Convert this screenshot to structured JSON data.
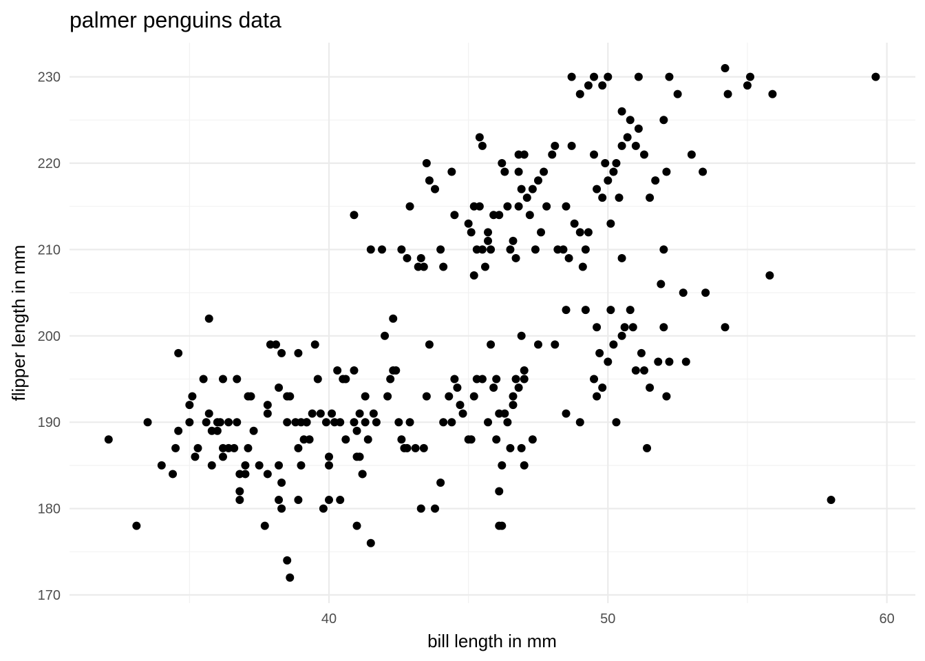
{
  "chart_data": {
    "type": "scatter",
    "title": "palmer penguins data",
    "xlabel": "bill length in mm",
    "ylabel": "flipper length in mm",
    "xlim": [
      31.1,
      61.1
    ],
    "ylim": [
      169,
      233
    ],
    "x_ticks": [
      40,
      50,
      60
    ],
    "y_ticks": [
      170,
      180,
      190,
      200,
      210,
      220,
      230
    ],
    "x_tick_labels": [
      "40",
      "50",
      "60"
    ],
    "y_tick_labels": [
      "170",
      "180",
      "190",
      "200",
      "210",
      "220",
      "230"
    ],
    "grid": true,
    "point_color": "#000000",
    "points": [
      [
        32.1,
        188
      ],
      [
        33.1,
        178
      ],
      [
        33.5,
        190
      ],
      [
        34.0,
        185
      ],
      [
        34.4,
        184
      ],
      [
        34.5,
        187
      ],
      [
        34.6,
        189
      ],
      [
        34.6,
        198
      ],
      [
        35.0,
        190
      ],
      [
        35.0,
        192
      ],
      [
        35.1,
        193
      ],
      [
        35.2,
        186
      ],
      [
        35.3,
        187
      ],
      [
        35.5,
        195
      ],
      [
        35.6,
        190
      ],
      [
        35.7,
        191
      ],
      [
        35.7,
        202
      ],
      [
        35.8,
        185
      ],
      [
        35.8,
        189
      ],
      [
        36.0,
        189
      ],
      [
        36.0,
        190
      ],
      [
        36.1,
        190
      ],
      [
        36.2,
        195
      ],
      [
        36.2,
        187
      ],
      [
        36.2,
        186
      ],
      [
        36.4,
        190
      ],
      [
        36.4,
        187
      ],
      [
        36.6,
        187
      ],
      [
        36.7,
        195
      ],
      [
        36.7,
        190
      ],
      [
        36.8,
        184
      ],
      [
        36.8,
        182
      ],
      [
        36.8,
        181
      ],
      [
        37.0,
        185
      ],
      [
        37.0,
        184
      ],
      [
        37.1,
        187
      ],
      [
        37.1,
        193
      ],
      [
        37.2,
        193
      ],
      [
        37.3,
        189
      ],
      [
        37.5,
        185
      ],
      [
        37.7,
        178
      ],
      [
        37.8,
        184
      ],
      [
        37.8,
        191
      ],
      [
        37.8,
        192
      ],
      [
        37.9,
        199
      ],
      [
        38.1,
        199
      ],
      [
        38.2,
        194
      ],
      [
        38.2,
        185
      ],
      [
        38.2,
        181
      ],
      [
        38.3,
        183
      ],
      [
        38.3,
        180
      ],
      [
        38.3,
        198
      ],
      [
        38.5,
        193
      ],
      [
        38.5,
        190
      ],
      [
        38.5,
        174
      ],
      [
        38.6,
        193
      ],
      [
        38.6,
        172
      ],
      [
        38.8,
        190
      ],
      [
        38.9,
        198
      ],
      [
        38.9,
        187
      ],
      [
        38.9,
        181
      ],
      [
        39.0,
        190
      ],
      [
        39.0,
        185
      ],
      [
        39.1,
        188
      ],
      [
        39.2,
        190
      ],
      [
        39.2,
        190
      ],
      [
        39.3,
        188
      ],
      [
        39.4,
        191
      ],
      [
        39.5,
        199
      ],
      [
        39.6,
        195
      ],
      [
        39.7,
        191
      ],
      [
        39.8,
        180
      ],
      [
        39.9,
        190
      ],
      [
        40.0,
        181
      ],
      [
        40.0,
        186
      ],
      [
        40.0,
        185
      ],
      [
        40.1,
        191
      ],
      [
        40.2,
        190
      ],
      [
        40.3,
        196
      ],
      [
        40.4,
        181
      ],
      [
        40.4,
        190
      ],
      [
        40.5,
        195
      ],
      [
        40.6,
        188
      ],
      [
        40.6,
        195
      ],
      [
        40.9,
        196
      ],
      [
        40.9,
        190
      ],
      [
        41.0,
        178
      ],
      [
        41.0,
        186
      ],
      [
        41.0,
        189
      ],
      [
        41.1,
        191
      ],
      [
        41.1,
        186
      ],
      [
        41.2,
        184
      ],
      [
        41.2,
        184
      ],
      [
        41.3,
        193
      ],
      [
        41.3,
        190
      ],
      [
        41.4,
        188
      ],
      [
        41.5,
        176
      ],
      [
        41.6,
        191
      ],
      [
        41.7,
        190
      ],
      [
        42.0,
        200
      ],
      [
        42.1,
        193
      ],
      [
        42.2,
        195
      ],
      [
        42.3,
        196
      ],
      [
        42.4,
        196
      ],
      [
        42.5,
        190
      ],
      [
        42.6,
        188
      ],
      [
        42.7,
        187
      ],
      [
        42.8,
        187
      ],
      [
        42.9,
        190
      ],
      [
        43.1,
        187
      ],
      [
        43.3,
        180
      ],
      [
        43.4,
        187
      ],
      [
        43.5,
        193
      ],
      [
        43.6,
        199
      ],
      [
        43.8,
        180
      ],
      [
        44.0,
        183
      ],
      [
        44.1,
        190
      ],
      [
        44.3,
        193
      ],
      [
        44.4,
        190
      ],
      [
        44.5,
        195
      ],
      [
        44.6,
        194
      ],
      [
        44.7,
        192
      ],
      [
        44.8,
        191
      ],
      [
        45.0,
        188
      ],
      [
        45.1,
        188
      ],
      [
        45.2,
        193
      ],
      [
        45.3,
        195
      ],
      [
        45.5,
        195
      ],
      [
        45.7,
        190
      ],
      [
        45.8,
        199
      ],
      [
        45.9,
        194
      ],
      [
        46.0,
        188
      ],
      [
        46.1,
        182
      ],
      [
        46.1,
        178
      ],
      [
        46.2,
        185
      ],
      [
        46.3,
        191
      ],
      [
        46.5,
        187
      ],
      [
        46.6,
        193
      ],
      [
        46.7,
        195
      ],
      [
        46.9,
        200
      ],
      [
        47.0,
        196
      ],
      [
        47.0,
        185
      ],
      [
        40.9,
        214
      ],
      [
        41.5,
        210
      ],
      [
        41.9,
        210
      ],
      [
        42.3,
        202
      ],
      [
        42.6,
        210
      ],
      [
        42.8,
        209
      ],
      [
        42.9,
        215
      ],
      [
        43.2,
        208
      ],
      [
        43.3,
        209
      ],
      [
        43.4,
        208
      ],
      [
        43.5,
        220
      ],
      [
        43.6,
        218
      ],
      [
        43.8,
        217
      ],
      [
        44.0,
        210
      ],
      [
        44.1,
        208
      ],
      [
        44.4,
        219
      ],
      [
        44.5,
        214
      ],
      [
        45.0,
        213
      ],
      [
        45.1,
        212
      ],
      [
        45.2,
        215
      ],
      [
        45.2,
        207
      ],
      [
        45.3,
        210
      ],
      [
        45.4,
        215
      ],
      [
        45.4,
        223
      ],
      [
        45.5,
        210
      ],
      [
        45.6,
        208
      ],
      [
        45.7,
        211
      ],
      [
        45.7,
        212
      ],
      [
        45.8,
        210
      ],
      [
        45.9,
        214
      ],
      [
        46.1,
        214
      ],
      [
        46.2,
        220
      ],
      [
        46.3,
        219
      ],
      [
        46.4,
        215
      ],
      [
        46.5,
        210
      ],
      [
        46.6,
        211
      ],
      [
        46.7,
        209
      ],
      [
        46.8,
        215
      ],
      [
        46.8,
        221
      ],
      [
        46.9,
        217
      ],
      [
        47.0,
        221
      ],
      [
        47.1,
        216
      ],
      [
        47.2,
        214
      ],
      [
        47.3,
        217
      ],
      [
        47.4,
        210
      ],
      [
        47.5,
        218
      ],
      [
        47.6,
        212
      ],
      [
        47.7,
        219
      ],
      [
        47.8,
        215
      ],
      [
        48.0,
        221
      ],
      [
        48.1,
        222
      ],
      [
        48.2,
        210
      ],
      [
        48.4,
        210
      ],
      [
        48.5,
        215
      ],
      [
        48.6,
        209
      ],
      [
        48.7,
        222
      ],
      [
        48.8,
        213
      ],
      [
        49.0,
        212
      ],
      [
        49.1,
        208
      ],
      [
        49.2,
        210
      ],
      [
        49.3,
        212
      ],
      [
        49.5,
        221
      ],
      [
        49.6,
        217
      ],
      [
        49.8,
        216
      ],
      [
        49.9,
        220
      ],
      [
        50.0,
        218
      ],
      [
        50.1,
        213
      ],
      [
        50.2,
        219
      ],
      [
        50.3,
        220
      ],
      [
        50.4,
        216
      ],
      [
        50.5,
        222
      ],
      [
        50.7,
        223
      ],
      [
        50.8,
        225
      ],
      [
        51.0,
        222
      ],
      [
        51.1,
        224
      ],
      [
        51.3,
        221
      ],
      [
        51.5,
        216
      ],
      [
        51.7,
        218
      ],
      [
        52.0,
        225
      ],
      [
        52.1,
        219
      ],
      [
        52.5,
        228
      ],
      [
        53.0,
        221
      ],
      [
        53.4,
        219
      ],
      [
        54.3,
        228
      ],
      [
        55.0,
        229
      ],
      [
        55.1,
        230
      ],
      [
        59.6,
        230
      ],
      [
        55.9,
        228
      ],
      [
        49.0,
        228
      ],
      [
        49.3,
        229
      ],
      [
        49.5,
        230
      ],
      [
        49.8,
        229
      ],
      [
        50.0,
        230
      ],
      [
        48.7,
        230
      ],
      [
        50.5,
        226
      ],
      [
        51.1,
        230
      ],
      [
        52.2,
        230
      ],
      [
        54.2,
        231
      ],
      [
        45.5,
        222
      ],
      [
        46.8,
        219
      ],
      [
        46.0,
        195
      ],
      [
        46.1,
        191
      ],
      [
        46.4,
        190
      ],
      [
        46.6,
        192
      ],
      [
        46.8,
        194
      ],
      [
        47.0,
        195
      ],
      [
        47.5,
        199
      ],
      [
        48.1,
        199
      ],
      [
        48.5,
        203
      ],
      [
        49.0,
        190
      ],
      [
        49.2,
        203
      ],
      [
        49.5,
        195
      ],
      [
        49.6,
        193
      ],
      [
        49.8,
        194
      ],
      [
        50.0,
        197
      ],
      [
        50.2,
        199
      ],
      [
        50.3,
        190
      ],
      [
        50.5,
        200
      ],
      [
        50.6,
        201
      ],
      [
        50.8,
        203
      ],
      [
        50.9,
        201
      ],
      [
        51.0,
        196
      ],
      [
        51.3,
        196
      ],
      [
        51.5,
        194
      ],
      [
        51.9,
        206
      ],
      [
        52.0,
        201
      ],
      [
        52.2,
        197
      ],
      [
        52.7,
        205
      ],
      [
        52.8,
        197
      ],
      [
        53.5,
        205
      ],
      [
        54.2,
        201
      ],
      [
        55.8,
        207
      ],
      [
        58.0,
        181
      ],
      [
        46.2,
        178
      ],
      [
        46.9,
        187
      ],
      [
        47.3,
        188
      ],
      [
        51.4,
        187
      ],
      [
        50.1,
        203
      ],
      [
        52.0,
        210
      ],
      [
        50.5,
        209
      ],
      [
        49.7,
        198
      ],
      [
        51.2,
        198
      ],
      [
        48.5,
        191
      ],
      [
        49.6,
        201
      ],
      [
        51.8,
        197
      ],
      [
        52.1,
        193
      ]
    ]
  }
}
